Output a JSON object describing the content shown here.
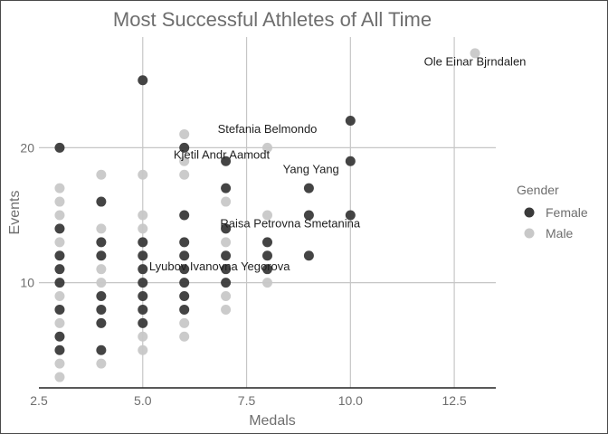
{
  "chart_data": {
    "type": "scatter",
    "title": "Most Successful Athletes of All Time",
    "xlabel": "Medals",
    "ylabel": "Events",
    "xlim": [
      2.5,
      13.5
    ],
    "ylim": [
      2.2,
      28.2
    ],
    "x_ticks": [
      2.5,
      5.0,
      7.5,
      10.0,
      12.5
    ],
    "x_tick_labels": [
      "2.5",
      "5.0",
      "7.5",
      "10.0",
      "12.5"
    ],
    "y_ticks": [
      10,
      20
    ],
    "y_tick_labels": [
      "10",
      "20"
    ],
    "grid": true,
    "legend": {
      "title": "Gender",
      "placement": "right"
    },
    "series": [
      {
        "name": "Female",
        "color": "#3a3a3a",
        "points": [
          [
            3,
            20
          ],
          [
            3,
            14
          ],
          [
            3,
            12
          ],
          [
            3,
            11
          ],
          [
            3,
            10
          ],
          [
            3,
            8
          ],
          [
            3,
            6
          ],
          [
            3,
            5
          ],
          [
            4,
            16
          ],
          [
            4,
            13
          ],
          [
            4,
            12
          ],
          [
            4,
            9
          ],
          [
            4,
            8
          ],
          [
            4,
            7
          ],
          [
            4,
            5
          ],
          [
            5,
            25
          ],
          [
            5,
            13
          ],
          [
            5,
            12
          ],
          [
            5,
            11
          ],
          [
            5,
            10
          ],
          [
            5,
            9
          ],
          [
            5,
            8
          ],
          [
            5,
            7
          ],
          [
            6,
            20
          ],
          [
            6,
            15
          ],
          [
            6,
            13
          ],
          [
            6,
            12
          ],
          [
            6,
            11
          ],
          [
            6,
            10
          ],
          [
            6,
            9
          ],
          [
            6,
            8
          ],
          [
            7,
            19
          ],
          [
            7,
            17
          ],
          [
            7,
            14
          ],
          [
            7,
            12
          ],
          [
            7,
            11
          ],
          [
            7,
            10
          ],
          [
            8,
            13
          ],
          [
            8,
            12
          ],
          [
            8,
            11
          ],
          [
            9,
            17
          ],
          [
            9,
            15
          ],
          [
            9,
            12
          ],
          [
            10,
            22
          ],
          [
            10,
            19
          ],
          [
            10,
            15
          ]
        ]
      },
      {
        "name": "Male",
        "color": "#c8c8c8",
        "points": [
          [
            3,
            17
          ],
          [
            3,
            16
          ],
          [
            3,
            15
          ],
          [
            3,
            13
          ],
          [
            3,
            9
          ],
          [
            3,
            7
          ],
          [
            3,
            4
          ],
          [
            3,
            3
          ],
          [
            4,
            18
          ],
          [
            4,
            14
          ],
          [
            4,
            11
          ],
          [
            4,
            10
          ],
          [
            4,
            4
          ],
          [
            5,
            18
          ],
          [
            5,
            15
          ],
          [
            5,
            14
          ],
          [
            5,
            6
          ],
          [
            5,
            5
          ],
          [
            6,
            21
          ],
          [
            6,
            19
          ],
          [
            6,
            18
          ],
          [
            6,
            7
          ],
          [
            6,
            6
          ],
          [
            7,
            16
          ],
          [
            7,
            13
          ],
          [
            7,
            9
          ],
          [
            7,
            8
          ],
          [
            8,
            20
          ],
          [
            8,
            15
          ],
          [
            8,
            10
          ],
          [
            13,
            27
          ]
        ]
      }
    ],
    "annotations": [
      {
        "text": "Ole Einar Bjrndalen",
        "x": 13,
        "y": 26.1
      },
      {
        "text": "Stefania Belmondo",
        "x": 8,
        "y": 21.1
      },
      {
        "text": "Kjetil Andr Aamodt",
        "x": 6.9,
        "y": 19.2
      },
      {
        "text": "Yang Yang",
        "x": 9.05,
        "y": 18.1
      },
      {
        "text": "Raisa Petrovna Smetanina",
        "x": 8.55,
        "y": 14.1
      },
      {
        "text": "Lyubov Ivanovna Yegorova",
        "x": 6.85,
        "y": 10.9
      }
    ]
  }
}
